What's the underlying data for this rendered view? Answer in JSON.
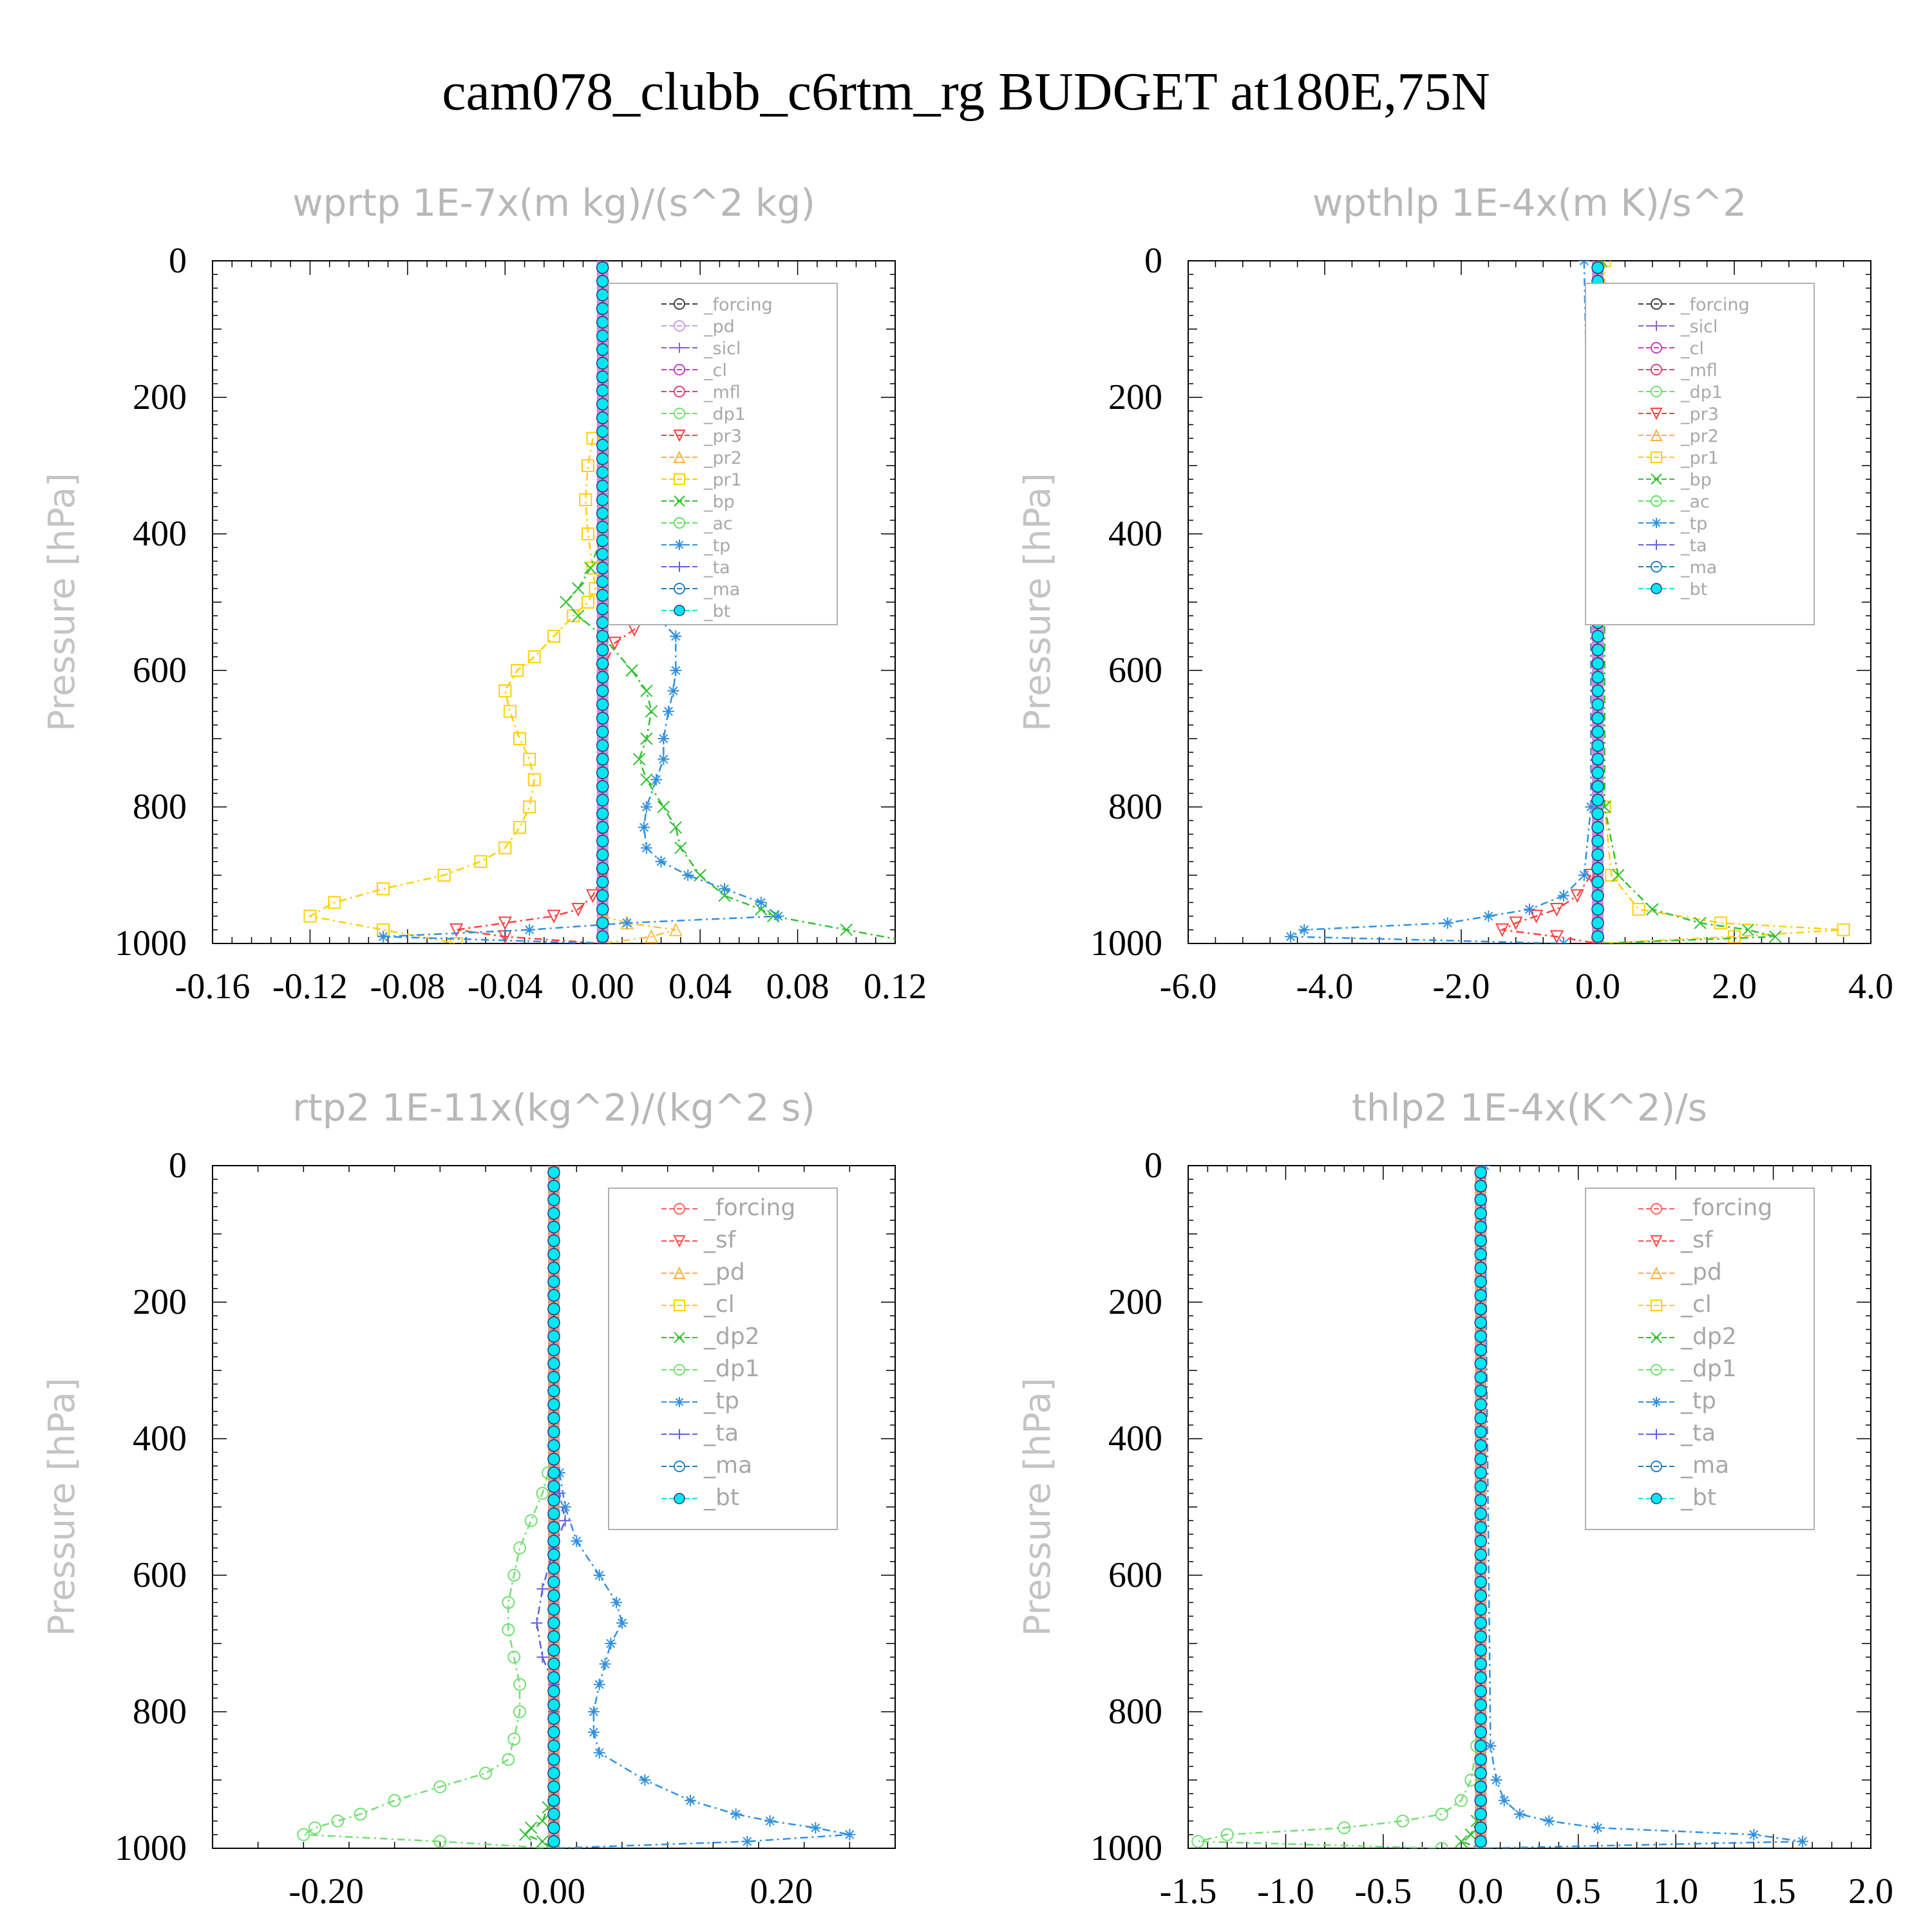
{
  "figure": {
    "title": "cam078_clubb_c6rtm_rg  BUDGET at180E,75N"
  },
  "chart_data": [
    {
      "type": "line",
      "title": "wprtp   1E-7x(m kg)/(s^2 kg)",
      "ylabel": "Pressure [hPa]",
      "xlim": [
        -0.16,
        0.12
      ],
      "ylim": [
        1000,
        0
      ],
      "x_ticks": [
        "-0.16",
        "-0.12",
        "-0.08",
        "-0.04",
        "0.00",
        "0.04",
        "0.08",
        "0.12"
      ],
      "y_ticks": [
        "0",
        "200",
        "400",
        "600",
        "800",
        "1000"
      ],
      "legend": [
        "_forcing",
        "_pd",
        "_sicl",
        "_cl",
        "_mfl",
        "_dp1",
        "_pr3",
        "_pr2",
        "_pr1",
        "_bp",
        "_ac",
        "_tp",
        "_ta",
        "_ma",
        "_bt"
      ],
      "series": [
        {
          "name": "_pr1",
          "color": "#ffd000",
          "marker": "square",
          "pressure": [
            260,
            300,
            350,
            400,
            450,
            480,
            500,
            520,
            550,
            580,
            600,
            630,
            660,
            700,
            730,
            760,
            800,
            830,
            860,
            880,
            900,
            920,
            940,
            960,
            980,
            1000
          ],
          "values": [
            -0.004,
            -0.006,
            -0.007,
            -0.006,
            -0.004,
            -0.003,
            -0.006,
            -0.012,
            -0.02,
            -0.028,
            -0.035,
            -0.04,
            -0.038,
            -0.034,
            -0.03,
            -0.028,
            -0.03,
            -0.034,
            -0.04,
            -0.05,
            -0.065,
            -0.09,
            -0.11,
            -0.12,
            -0.09,
            -0.06
          ]
        },
        {
          "name": "_pr2",
          "color": "#ffc040",
          "marker": "triangle",
          "pressure": [
            960,
            970,
            980,
            990,
            1000
          ],
          "values": [
            0.0,
            0.01,
            0.03,
            0.02,
            0.0
          ]
        },
        {
          "name": "_pr3",
          "color": "#ff4040",
          "marker": "triangle-down",
          "pressure": [
            500,
            520,
            540,
            560,
            600,
            900,
            930,
            950,
            960,
            970,
            980,
            990,
            1000
          ],
          "values": [
            0.004,
            0.01,
            0.013,
            0.005,
            0.0,
            0.0,
            -0.004,
            -0.01,
            -0.02,
            -0.04,
            -0.06,
            -0.04,
            0.0
          ]
        },
        {
          "name": "_bp",
          "color": "#30c030",
          "marker": "x",
          "pressure": [
            400,
            450,
            480,
            500,
            520,
            550,
            600,
            630,
            660,
            700,
            730,
            760,
            800,
            830,
            860,
            900,
            930,
            950,
            960,
            980,
            1000
          ],
          "values": [
            0.0,
            -0.005,
            -0.01,
            -0.015,
            -0.01,
            0.0,
            0.012,
            0.018,
            0.02,
            0.018,
            0.015,
            0.018,
            0.025,
            0.03,
            0.032,
            0.04,
            0.05,
            0.065,
            0.07,
            0.1,
            0.13
          ]
        },
        {
          "name": "_tp",
          "color": "#3090e0",
          "marker": "asterisk",
          "pressure": [
            300,
            400,
            450,
            480,
            500,
            520,
            550,
            600,
            630,
            660,
            700,
            730,
            760,
            800,
            830,
            860,
            880,
            900,
            920,
            940,
            960,
            970,
            980,
            990,
            1000
          ],
          "values": [
            0.005,
            0.005,
            0.004,
            0.005,
            0.012,
            0.022,
            0.03,
            0.03,
            0.029,
            0.027,
            0.025,
            0.025,
            0.022,
            0.018,
            0.017,
            0.018,
            0.024,
            0.035,
            0.05,
            0.065,
            0.072,
            0.01,
            -0.03,
            -0.09,
            0.0
          ]
        },
        {
          "name": "_bt",
          "color": "#00e8f0",
          "marker": "dot",
          "pressure": [
            0,
            100,
            200,
            300,
            400,
            500,
            600,
            700,
            800,
            900,
            1000
          ],
          "values": [
            0,
            0,
            0,
            0,
            0,
            0,
            0,
            0,
            0,
            0,
            0
          ]
        }
      ]
    },
    {
      "type": "line",
      "title": "wpthlp   1E-4x(m K)/s^2",
      "ylabel": "Pressure [hPa]",
      "xlim": [
        -6.0,
        4.0
      ],
      "ylim": [
        1000,
        0
      ],
      "x_ticks": [
        "-6.0",
        "-4.0",
        "-2.0",
        "0.0",
        "2.0",
        "4.0"
      ],
      "y_ticks": [
        "0",
        "200",
        "400",
        "600",
        "800",
        "1000"
      ],
      "legend": [
        "_forcing",
        "_sicl",
        "_cl",
        "_mfl",
        "_dp1",
        "_pr3",
        "_pr2",
        "_pr1",
        "_bp",
        "_ac",
        "_tp",
        "_ta",
        "_ma",
        "_bt"
      ],
      "series": [
        {
          "name": "_pr1",
          "color": "#ffd000",
          "marker": "square",
          "pressure": [
            0,
            500,
            800,
            900,
            950,
            970,
            980,
            990,
            1000
          ],
          "values": [
            0.1,
            0.1,
            0.1,
            0.2,
            0.6,
            1.8,
            3.6,
            2.0,
            0.0
          ]
        },
        {
          "name": "_bp",
          "color": "#30c030",
          "marker": "x",
          "pressure": [
            0,
            500,
            800,
            900,
            950,
            970,
            980,
            990,
            1000
          ],
          "values": [
            0.05,
            0.1,
            0.1,
            0.3,
            0.8,
            1.5,
            2.2,
            2.6,
            0.0
          ]
        },
        {
          "name": "_pr3",
          "color": "#ff4040",
          "marker": "triangle-down",
          "pressure": [
            900,
            930,
            950,
            960,
            970,
            980,
            990,
            1000
          ],
          "values": [
            -0.1,
            -0.3,
            -0.6,
            -0.9,
            -1.2,
            -1.4,
            -0.6,
            0.0
          ]
        },
        {
          "name": "_tp",
          "color": "#3090e0",
          "marker": "asterisk",
          "pressure": [
            0,
            500,
            800,
            900,
            930,
            950,
            960,
            970,
            980,
            990,
            1000
          ],
          "values": [
            -0.2,
            -0.1,
            -0.1,
            -0.2,
            -0.5,
            -1.0,
            -1.6,
            -2.2,
            -4.3,
            -4.5,
            -0.5
          ]
        },
        {
          "name": "_bt",
          "color": "#00e8f0",
          "marker": "dot",
          "pressure": [
            0,
            100,
            200,
            300,
            400,
            500,
            600,
            700,
            800,
            900,
            1000
          ],
          "values": [
            0,
            0,
            0,
            0,
            0,
            0,
            0,
            0,
            0,
            0,
            0
          ]
        }
      ]
    },
    {
      "type": "line",
      "title": "rtp2   1E-11x(kg^2)/(kg^2 s)",
      "ylabel": "Pressure [hPa]",
      "xlim": [
        -0.3,
        0.3
      ],
      "ylim": [
        1000,
        0
      ],
      "x_ticks": [
        "-0.20",
        "0.00",
        "0.20"
      ],
      "y_ticks": [
        "0",
        "200",
        "400",
        "600",
        "800",
        "1000"
      ],
      "legend": [
        "_forcing",
        "_sf",
        "_pd",
        "_cl",
        "_dp2",
        "_dp1",
        "_tp",
        "_ta",
        "_ma",
        "_bt"
      ],
      "series": [
        {
          "name": "_dp1",
          "color": "#70e070",
          "marker": "circle",
          "pressure": [
            450,
            480,
            520,
            560,
            600,
            640,
            680,
            720,
            760,
            800,
            840,
            870,
            890,
            910,
            930,
            950,
            960,
            970,
            980,
            990,
            1000
          ],
          "values": [
            -0.005,
            -0.01,
            -0.02,
            -0.03,
            -0.035,
            -0.04,
            -0.04,
            -0.035,
            -0.03,
            -0.03,
            -0.035,
            -0.04,
            -0.06,
            -0.1,
            -0.14,
            -0.17,
            -0.19,
            -0.21,
            -0.22,
            -0.1,
            0.0
          ]
        },
        {
          "name": "_tp",
          "color": "#3090e0",
          "marker": "asterisk",
          "pressure": [
            450,
            500,
            550,
            600,
            640,
            670,
            700,
            730,
            760,
            800,
            830,
            860,
            900,
            930,
            950,
            960,
            970,
            980,
            990,
            1000
          ],
          "values": [
            0.005,
            0.01,
            0.02,
            0.04,
            0.055,
            0.06,
            0.05,
            0.045,
            0.04,
            0.035,
            0.035,
            0.04,
            0.08,
            0.12,
            0.16,
            0.19,
            0.23,
            0.26,
            0.17,
            0.0
          ]
        },
        {
          "name": "_ta",
          "color": "#6060e0",
          "marker": "plus",
          "pressure": [
            450,
            480,
            520,
            560,
            620,
            670,
            720,
            760,
            800,
            1000
          ],
          "values": [
            0.0,
            0.005,
            0.01,
            0.0,
            -0.01,
            -0.015,
            -0.01,
            0.0,
            0.0,
            0.0
          ]
        },
        {
          "name": "_dp2",
          "color": "#30c030",
          "marker": "x",
          "pressure": [
            900,
            940,
            960,
            970,
            980,
            990,
            1000
          ],
          "values": [
            0.0,
            -0.005,
            -0.01,
            -0.02,
            -0.025,
            -0.01,
            0.0
          ]
        },
        {
          "name": "_bt",
          "color": "#00e8f0",
          "marker": "dot",
          "pressure": [
            0,
            100,
            200,
            300,
            400,
            500,
            600,
            700,
            800,
            900,
            1000
          ],
          "values": [
            0,
            0,
            0,
            0,
            0,
            0,
            0,
            0,
            0,
            0,
            0
          ]
        }
      ]
    },
    {
      "type": "line",
      "title": "thlp2   1E-4x(K^2)/s",
      "ylabel": "Pressure [hPa]",
      "xlim": [
        -1.5,
        2.0
      ],
      "ylim": [
        1000,
        0
      ],
      "x_ticks": [
        "-1.5",
        "-1.0",
        "-0.5",
        "0.0",
        "0.5",
        "1.0",
        "1.5",
        "2.0"
      ],
      "y_ticks": [
        "0",
        "200",
        "400",
        "600",
        "800",
        "1000"
      ],
      "legend": [
        "_forcing",
        "_sf",
        "_pd",
        "_cl",
        "_dp2",
        "_dp1",
        "_tp",
        "_ta",
        "_ma",
        "_bt"
      ],
      "series": [
        {
          "name": "_dp1",
          "color": "#70e070",
          "marker": "circle",
          "pressure": [
            850,
            900,
            930,
            950,
            960,
            970,
            980,
            990,
            1000
          ],
          "values": [
            -0.02,
            -0.05,
            -0.1,
            -0.2,
            -0.4,
            -0.7,
            -1.3,
            -1.45,
            -0.2
          ]
        },
        {
          "name": "_tp",
          "color": "#3090e0",
          "marker": "asterisk",
          "pressure": [
            0,
            850,
            900,
            930,
            950,
            960,
            970,
            980,
            990,
            1000
          ],
          "values": [
            0.02,
            0.05,
            0.08,
            0.12,
            0.2,
            0.35,
            0.6,
            1.4,
            1.65,
            0.0
          ]
        },
        {
          "name": "_dp2",
          "color": "#30c030",
          "marker": "x",
          "pressure": [
            900,
            960,
            980,
            990,
            1000
          ],
          "values": [
            0.0,
            -0.02,
            -0.05,
            -0.1,
            0.0
          ]
        },
        {
          "name": "_bt",
          "color": "#00e8f0",
          "marker": "dot",
          "pressure": [
            0,
            100,
            200,
            300,
            400,
            500,
            600,
            700,
            800,
            900,
            1000
          ],
          "values": [
            0,
            0,
            0,
            0,
            0,
            0,
            0,
            0,
            0,
            0,
            0
          ]
        }
      ]
    }
  ]
}
